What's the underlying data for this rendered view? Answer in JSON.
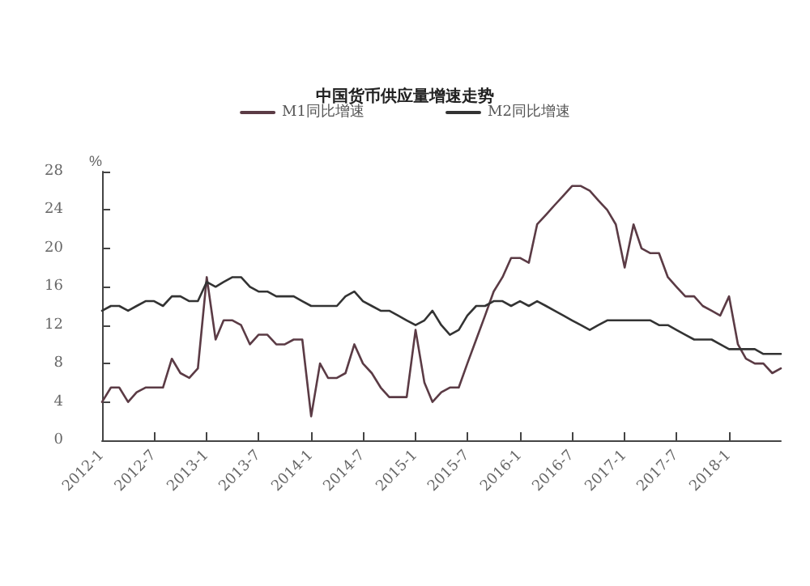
{
  "chart_data": {
    "type": "line",
    "title": "中国货币供应量增速走势",
    "ylabel": "%",
    "x": [
      "2012-01",
      "2012-02",
      "2012-03",
      "2012-04",
      "2012-05",
      "2012-06",
      "2012-07",
      "2012-08",
      "2012-09",
      "2012-10",
      "2012-11",
      "2012-12",
      "2013-01",
      "2013-02",
      "2013-03",
      "2013-04",
      "2013-05",
      "2013-06",
      "2013-07",
      "2013-08",
      "2013-09",
      "2013-10",
      "2013-11",
      "2013-12",
      "2014-01",
      "2014-02",
      "2014-03",
      "2014-04",
      "2014-05",
      "2014-06",
      "2014-07",
      "2014-08",
      "2014-09",
      "2014-10",
      "2014-11",
      "2014-12",
      "2015-01",
      "2015-02",
      "2015-03",
      "2015-04",
      "2015-05",
      "2015-06",
      "2015-07",
      "2015-08",
      "2015-09",
      "2015-10",
      "2015-11",
      "2015-12",
      "2016-01",
      "2016-02",
      "2016-03",
      "2016-04",
      "2016-05",
      "2016-06",
      "2016-07",
      "2016-08",
      "2016-09",
      "2016-10",
      "2016-11",
      "2016-12",
      "2017-01",
      "2017-02",
      "2017-03",
      "2017-04",
      "2017-05",
      "2017-06",
      "2017-07",
      "2017-08",
      "2017-09",
      "2017-10",
      "2017-11",
      "2017-12",
      "2018-01",
      "2018-02",
      "2018-03",
      "2018-04",
      "2018-05",
      "2018-06",
      "2018-07"
    ],
    "series": [
      {
        "name": "M1同比增速",
        "color": "#5b3b45",
        "values": [
          4,
          5.5,
          5.5,
          4,
          5,
          5.5,
          5.5,
          5.5,
          8.5,
          7,
          6.5,
          7.5,
          17,
          10.5,
          12.5,
          12.5,
          12,
          10,
          11,
          11,
          10,
          10,
          10.5,
          10.5,
          2.5,
          8,
          6.5,
          6.5,
          7,
          10,
          8,
          7,
          5.5,
          4.5,
          4.5,
          4.5,
          11.5,
          6,
          4,
          5,
          5.5,
          5.5,
          8,
          10.5,
          13,
          15.5,
          17,
          19,
          19,
          18.5,
          22.5,
          23.5,
          24.5,
          25.5,
          26.5,
          26.5,
          26,
          25,
          24,
          22.5,
          18,
          22.5,
          20,
          19.5,
          19.5,
          17,
          16,
          15,
          15,
          14,
          13.5,
          13,
          15,
          10,
          8.5,
          8,
          8,
          7,
          7.5
        ]
      },
      {
        "name": "M2同比增速",
        "color": "#333333",
        "values": [
          13.5,
          14,
          14,
          13.5,
          14,
          14.5,
          14.5,
          14,
          15,
          15,
          14.5,
          14.5,
          16.5,
          16,
          16.5,
          17,
          17,
          16,
          15.5,
          15.5,
          15,
          15,
          15,
          14.5,
          14,
          14,
          14,
          14,
          15,
          15.5,
          14.5,
          14,
          13.5,
          13.5,
          13,
          12.5,
          12,
          12.5,
          13.5,
          12,
          11,
          11.5,
          13,
          14,
          14,
          14.5,
          14.5,
          14,
          14.5,
          14,
          14.5,
          14,
          13.5,
          13,
          12.5,
          12,
          11.5,
          12,
          12.5,
          12.5,
          12.5,
          12.5,
          12.5,
          12.5,
          12,
          12,
          11.5,
          11,
          10.5,
          10.5,
          10.5,
          10,
          9.5,
          9.5,
          9.5,
          9.5,
          9,
          9,
          9
        ]
      }
    ],
    "xlim": [
      "2012-01",
      "2018-07"
    ],
    "xticks": [
      {
        "value": "2012-01",
        "label": "2012-1"
      },
      {
        "value": "2012-07",
        "label": "2012-7"
      },
      {
        "value": "2013-01",
        "label": "2013-1"
      },
      {
        "value": "2013-07",
        "label": "2013-7"
      },
      {
        "value": "2014-01",
        "label": "2014-1"
      },
      {
        "value": "2014-07",
        "label": "2014-7"
      },
      {
        "value": "2015-01",
        "label": "2015-1"
      },
      {
        "value": "2015-07",
        "label": "2015-7"
      },
      {
        "value": "2016-01",
        "label": "2016-1"
      },
      {
        "value": "2016-07",
        "label": "2016-7"
      },
      {
        "value": "2017-01",
        "label": "2017-1"
      },
      {
        "value": "2017-07",
        "label": "2017-7"
      },
      {
        "value": "2018-01",
        "label": "2018-1"
      }
    ],
    "ylim": [
      0,
      28
    ],
    "yticks": [
      0,
      4,
      8,
      12,
      16,
      20,
      24,
      28
    ],
    "legend": "top",
    "marker": "none",
    "line_style": "solid"
  }
}
